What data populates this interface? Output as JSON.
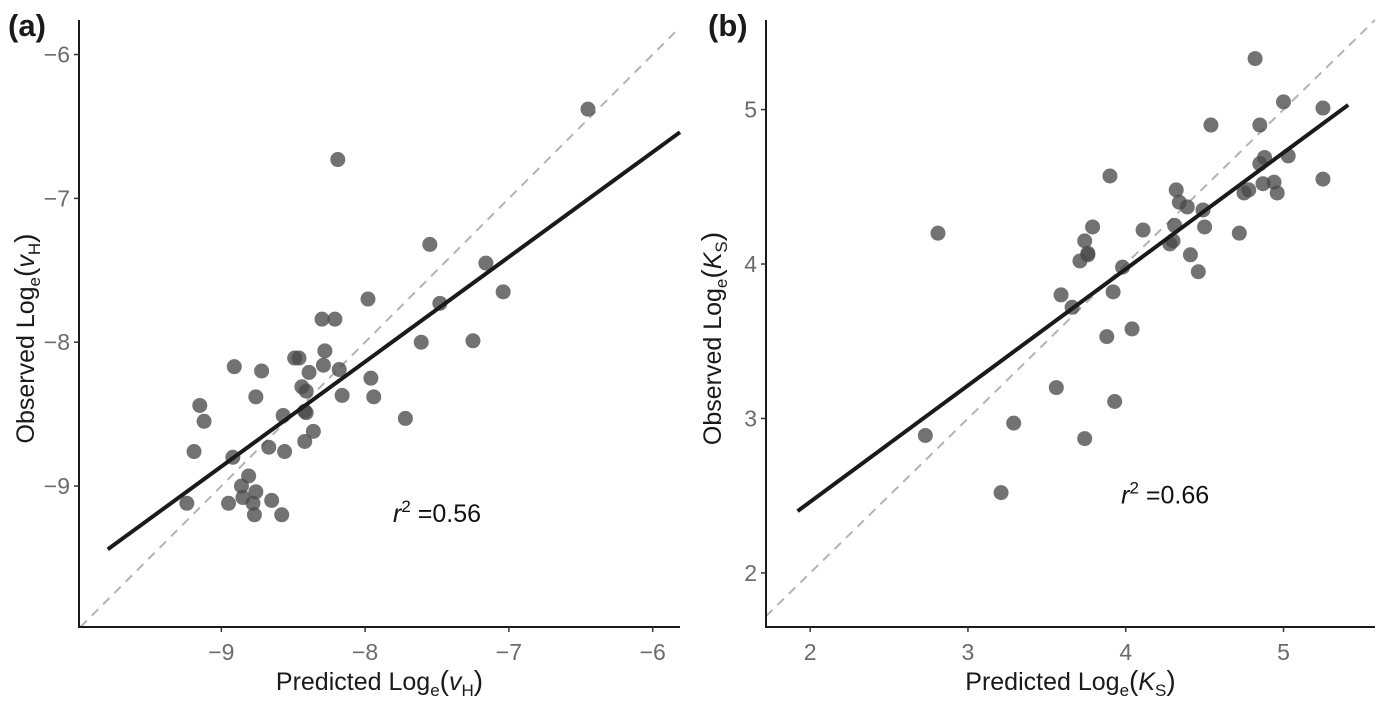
{
  "chart_data": [
    {
      "type": "scatter",
      "panel_label": "(a)",
      "xlabel": {
        "prefix": "Predicted Log",
        "base": "e",
        "open": "(",
        "var": "v",
        "var_sub": "H",
        "close": ")"
      },
      "ylabel": {
        "prefix": "Observed Log",
        "base": "e",
        "open": "(",
        "var": "v",
        "var_sub": "H",
        "close": ")"
      },
      "xlim": [
        -9.99,
        -5.81
      ],
      "ylim": [
        -9.98,
        -5.76
      ],
      "xticks": [
        -9,
        -8,
        -7,
        -6
      ],
      "yticks": [
        -9,
        -8,
        -7,
        -6
      ],
      "tick_labels_x": [
        "−9",
        "−8",
        "−7",
        "−6"
      ],
      "tick_labels_y": [
        "−9",
        "−8",
        "−7",
        "−6"
      ],
      "grid": false,
      "identity_line": true,
      "regression_line": [
        [
          -9.79,
          -9.44
        ],
        [
          -5.81,
          -6.54
        ]
      ],
      "annotation": {
        "var": "r",
        "exp": "2",
        "eq": " =",
        "value": "0.56",
        "x": -7.5,
        "y": -9.25
      },
      "points": [
        [
          -6.45,
          -6.38
        ],
        [
          -8.19,
          -6.73
        ],
        [
          -7.55,
          -7.32
        ],
        [
          -7.16,
          -7.45
        ],
        [
          -7.04,
          -7.65
        ],
        [
          -7.48,
          -7.73
        ],
        [
          -7.98,
          -7.7
        ],
        [
          -8.3,
          -7.84
        ],
        [
          -8.21,
          -7.84
        ],
        [
          -7.61,
          -8.0
        ],
        [
          -7.25,
          -7.99
        ],
        [
          -8.28,
          -8.06
        ],
        [
          -8.49,
          -8.11
        ],
        [
          -8.46,
          -8.11
        ],
        [
          -8.91,
          -8.17
        ],
        [
          -8.72,
          -8.2
        ],
        [
          -8.39,
          -8.21
        ],
        [
          -8.29,
          -8.16
        ],
        [
          -8.18,
          -8.19
        ],
        [
          -7.96,
          -8.25
        ],
        [
          -8.44,
          -8.31
        ],
        [
          -8.41,
          -8.34
        ],
        [
          -8.76,
          -8.38
        ],
        [
          -8.16,
          -8.37
        ],
        [
          -7.94,
          -8.38
        ],
        [
          -9.15,
          -8.44
        ],
        [
          -9.12,
          -8.55
        ],
        [
          -8.57,
          -8.51
        ],
        [
          -8.42,
          -8.48
        ],
        [
          -8.41,
          -8.49
        ],
        [
          -7.72,
          -8.53
        ],
        [
          -8.36,
          -8.62
        ],
        [
          -8.42,
          -8.69
        ],
        [
          -9.19,
          -8.76
        ],
        [
          -8.67,
          -8.73
        ],
        [
          -8.56,
          -8.76
        ],
        [
          -8.92,
          -8.8
        ],
        [
          -8.81,
          -8.93
        ],
        [
          -8.86,
          -9.0
        ],
        [
          -8.76,
          -9.04
        ],
        [
          -8.85,
          -9.08
        ],
        [
          -8.78,
          -9.12
        ],
        [
          -8.65,
          -9.1
        ],
        [
          -9.24,
          -9.12
        ],
        [
          -8.95,
          -9.12
        ],
        [
          -8.77,
          -9.2
        ],
        [
          -8.58,
          -9.2
        ]
      ]
    },
    {
      "type": "scatter",
      "panel_label": "(b)",
      "xlabel": {
        "prefix": "Predicted Log",
        "base": "e",
        "open": "(",
        "var": "K",
        "var_sub": "S",
        "close": ")"
      },
      "ylabel": {
        "prefix": "Observed Log",
        "base": "e",
        "open": "(",
        "var": "K",
        "var_sub": "S",
        "close": ")"
      },
      "xlim": [
        1.72,
        5.58
      ],
      "ylim": [
        1.65,
        5.58
      ],
      "xticks": [
        2,
        3,
        4,
        5
      ],
      "yticks": [
        2,
        3,
        4,
        5
      ],
      "tick_labels_x": [
        "2",
        "3",
        "4",
        "5"
      ],
      "tick_labels_y": [
        "2",
        "3",
        "4",
        "5"
      ],
      "grid": false,
      "identity_line": true,
      "regression_line": [
        [
          1.92,
          2.4
        ],
        [
          5.41,
          5.03
        ]
      ],
      "annotation": {
        "var": "r",
        "exp": "2",
        "eq": " =",
        "value": "0.66",
        "x": 4.25,
        "y": 2.45
      },
      "points": [
        [
          4.82,
          5.33
        ],
        [
          5.0,
          5.05
        ],
        [
          5.25,
          5.01
        ],
        [
          4.54,
          4.9
        ],
        [
          4.85,
          4.9
        ],
        [
          4.88,
          4.69
        ],
        [
          4.85,
          4.65
        ],
        [
          5.03,
          4.7
        ],
        [
          5.25,
          4.55
        ],
        [
          4.32,
          4.48
        ],
        [
          4.87,
          4.52
        ],
        [
          4.94,
          4.53
        ],
        [
          4.96,
          4.46
        ],
        [
          4.75,
          4.46
        ],
        [
          4.78,
          4.48
        ],
        [
          3.9,
          4.57
        ],
        [
          2.81,
          4.2
        ],
        [
          4.34,
          4.4
        ],
        [
          4.39,
          4.37
        ],
        [
          4.49,
          4.35
        ],
        [
          3.79,
          4.24
        ],
        [
          3.74,
          4.15
        ],
        [
          3.76,
          4.06
        ],
        [
          3.76,
          4.07
        ],
        [
          3.71,
          4.02
        ],
        [
          4.11,
          4.22
        ],
        [
          4.31,
          4.25
        ],
        [
          4.5,
          4.24
        ],
        [
          4.72,
          4.2
        ],
        [
          4.28,
          4.13
        ],
        [
          4.3,
          4.15
        ],
        [
          4.41,
          4.06
        ],
        [
          4.46,
          3.95
        ],
        [
          3.98,
          3.98
        ],
        [
          3.59,
          3.8
        ],
        [
          3.66,
          3.72
        ],
        [
          3.92,
          3.82
        ],
        [
          3.88,
          3.53
        ],
        [
          4.04,
          3.58
        ],
        [
          2.73,
          2.89
        ],
        [
          3.29,
          2.97
        ],
        [
          3.56,
          3.2
        ],
        [
          3.93,
          3.11
        ],
        [
          3.74,
          2.87
        ],
        [
          3.21,
          2.52
        ]
      ]
    }
  ],
  "colors": {
    "point": "#4a4a4a",
    "regression": "#1a1a1a",
    "identity": "#b3b3b3",
    "axis": "#1a1a1a",
    "tick_label": "#6b6b6b"
  }
}
